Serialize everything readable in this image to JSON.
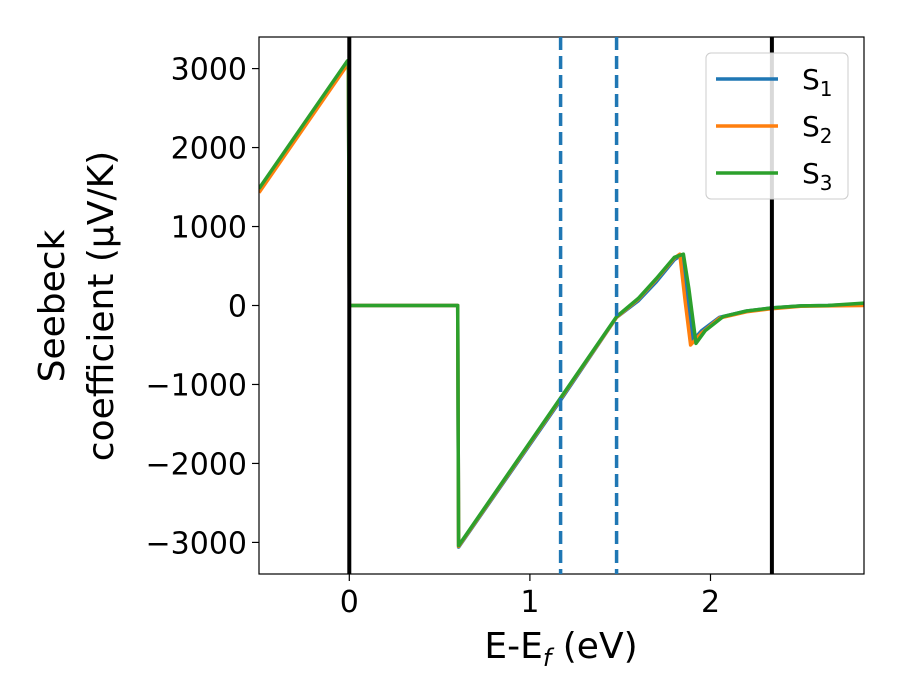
{
  "chart_data": {
    "type": "line",
    "xlabel": "E-E",
    "xlabel_sub": "f",
    "xlabel_unit": " (eV)",
    "ylabel_line1": "Seebeck",
    "ylabel_line2": "coefficient  (μV/K)",
    "xlim": [
      -0.5,
      2.85
    ],
    "ylim": [
      -3400,
      3400
    ],
    "x_ticks": [
      0,
      1,
      2
    ],
    "x_tick_labels": [
      "0",
      "1",
      "2"
    ],
    "y_ticks": [
      3000,
      2000,
      1000,
      0,
      -1000,
      -2000,
      -3000
    ],
    "y_tick_labels": [
      "3000",
      "2000",
      "1000",
      "0",
      "−1000",
      "−2000",
      "−3000"
    ],
    "grid": false,
    "legend": {
      "position": "top-right",
      "entries": [
        {
          "name": "S",
          "sub": "1",
          "color": "#1f77b4"
        },
        {
          "name": "S",
          "sub": "2",
          "color": "#ff7f0e"
        },
        {
          "name": "S",
          "sub": "3",
          "color": "#2ca02c"
        }
      ]
    },
    "vertical_lines": [
      {
        "x": 0.0,
        "color": "#000000",
        "style": "solid"
      },
      {
        "x": 2.34,
        "color": "#000000",
        "style": "solid"
      },
      {
        "x": 1.17,
        "color": "#1f77b4",
        "style": "dashed"
      },
      {
        "x": 1.48,
        "color": "#1f77b4",
        "style": "dashed"
      }
    ],
    "series": [
      {
        "name": "S1",
        "color": "#1f77b4",
        "points": [
          [
            -0.5,
            1450
          ],
          [
            -0.01,
            3080
          ],
          [
            -0.005,
            3080
          ],
          [
            0.0,
            0
          ],
          [
            0.6,
            0
          ],
          [
            0.605,
            -3060
          ],
          [
            1.17,
            -1200
          ],
          [
            1.48,
            -150
          ],
          [
            1.6,
            60
          ],
          [
            1.7,
            300
          ],
          [
            1.8,
            580
          ],
          [
            1.84,
            640
          ],
          [
            1.87,
            200
          ],
          [
            1.9,
            -450
          ],
          [
            1.95,
            -320
          ],
          [
            2.05,
            -150
          ],
          [
            2.2,
            -70
          ],
          [
            2.34,
            -30
          ],
          [
            2.5,
            -5
          ],
          [
            2.65,
            0
          ],
          [
            2.85,
            20
          ]
        ]
      },
      {
        "name": "S2",
        "color": "#ff7f0e",
        "points": [
          [
            -0.5,
            1430
          ],
          [
            -0.01,
            3050
          ],
          [
            -0.005,
            3050
          ],
          [
            0.0,
            0
          ],
          [
            0.6,
            0
          ],
          [
            0.605,
            -3050
          ],
          [
            1.17,
            -1180
          ],
          [
            1.48,
            -150
          ],
          [
            1.6,
            80
          ],
          [
            1.7,
            330
          ],
          [
            1.8,
            600
          ],
          [
            1.83,
            650
          ],
          [
            1.86,
            50
          ],
          [
            1.89,
            -500
          ],
          [
            1.95,
            -350
          ],
          [
            2.05,
            -160
          ],
          [
            2.2,
            -80
          ],
          [
            2.34,
            -40
          ],
          [
            2.5,
            -10
          ],
          [
            2.65,
            -5
          ],
          [
            2.85,
            0
          ]
        ]
      },
      {
        "name": "S3",
        "color": "#2ca02c",
        "points": [
          [
            -0.5,
            1480
          ],
          [
            -0.01,
            3100
          ],
          [
            -0.005,
            3100
          ],
          [
            0.0,
            0
          ],
          [
            0.6,
            0
          ],
          [
            0.605,
            -3040
          ],
          [
            1.17,
            -1170
          ],
          [
            1.48,
            -140
          ],
          [
            1.6,
            90
          ],
          [
            1.7,
            340
          ],
          [
            1.8,
            610
          ],
          [
            1.85,
            650
          ],
          [
            1.88,
            220
          ],
          [
            1.92,
            -480
          ],
          [
            1.97,
            -320
          ],
          [
            2.07,
            -140
          ],
          [
            2.2,
            -70
          ],
          [
            2.34,
            -30
          ],
          [
            2.5,
            -5
          ],
          [
            2.65,
            0
          ],
          [
            2.85,
            30
          ]
        ]
      }
    ]
  }
}
